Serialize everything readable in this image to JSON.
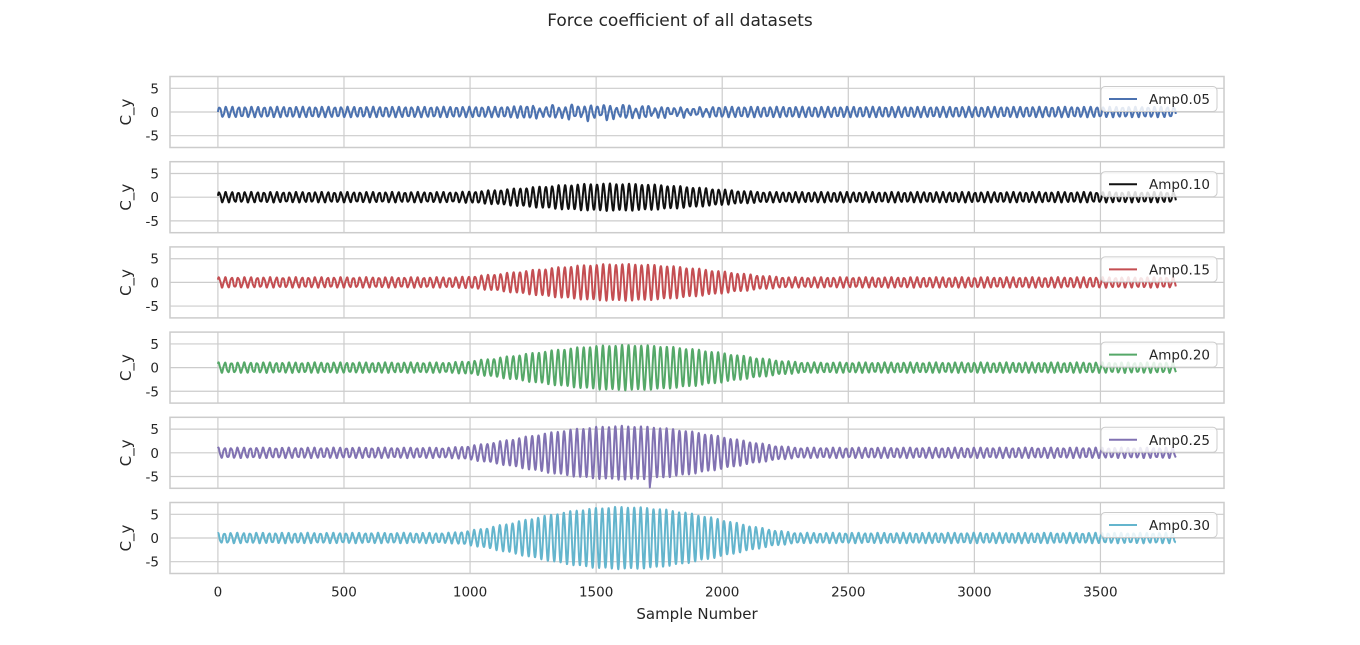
{
  "chart_data": {
    "type": "line",
    "title": "Force coefficient of all datasets",
    "xlabel": "Sample Number",
    "ylabel": "C_y",
    "xlim": [
      -190,
      3990
    ],
    "ylim": [
      -7.5,
      7.5
    ],
    "xticks": [
      0,
      500,
      1000,
      1500,
      2000,
      2500,
      3000,
      3500
    ],
    "yticks": [
      5,
      0,
      -5
    ],
    "grid": true,
    "legend_position": "upper right (each panel)",
    "sample_count": 3800,
    "series": [
      {
        "name": "Amp0.05",
        "color": "#4c72b0",
        "baseline_amplitude": 1.0,
        "peak_amplitude": 1.7,
        "envelope_range": [
          1100,
          1900
        ],
        "notes": "small disturbance in amplitude between ~1250 and ~1950"
      },
      {
        "name": "Amp0.10",
        "color": "#111111",
        "baseline_amplitude": 1.0,
        "peak_amplitude": 2.8,
        "envelope_range": [
          930,
          2200
        ]
      },
      {
        "name": "Amp0.15",
        "color": "#c44e52",
        "baseline_amplitude": 1.0,
        "peak_amplitude": 3.8,
        "envelope_range": [
          920,
          2280
        ]
      },
      {
        "name": "Amp0.20",
        "color": "#55a868",
        "baseline_amplitude": 1.0,
        "peak_amplitude": 4.7,
        "envelope_range": [
          900,
          2350
        ]
      },
      {
        "name": "Amp0.25",
        "color": "#8172b2",
        "baseline_amplitude": 1.0,
        "peak_amplitude": 5.6,
        "envelope_range": [
          900,
          2320
        ],
        "spike": {
          "x": 1713,
          "y": -7.3
        }
      },
      {
        "name": "Amp0.30",
        "color": "#64b5cd",
        "baseline_amplitude": 1.0,
        "peak_amplitude": 6.5,
        "envelope_range": [
          900,
          2320
        ]
      }
    ]
  }
}
